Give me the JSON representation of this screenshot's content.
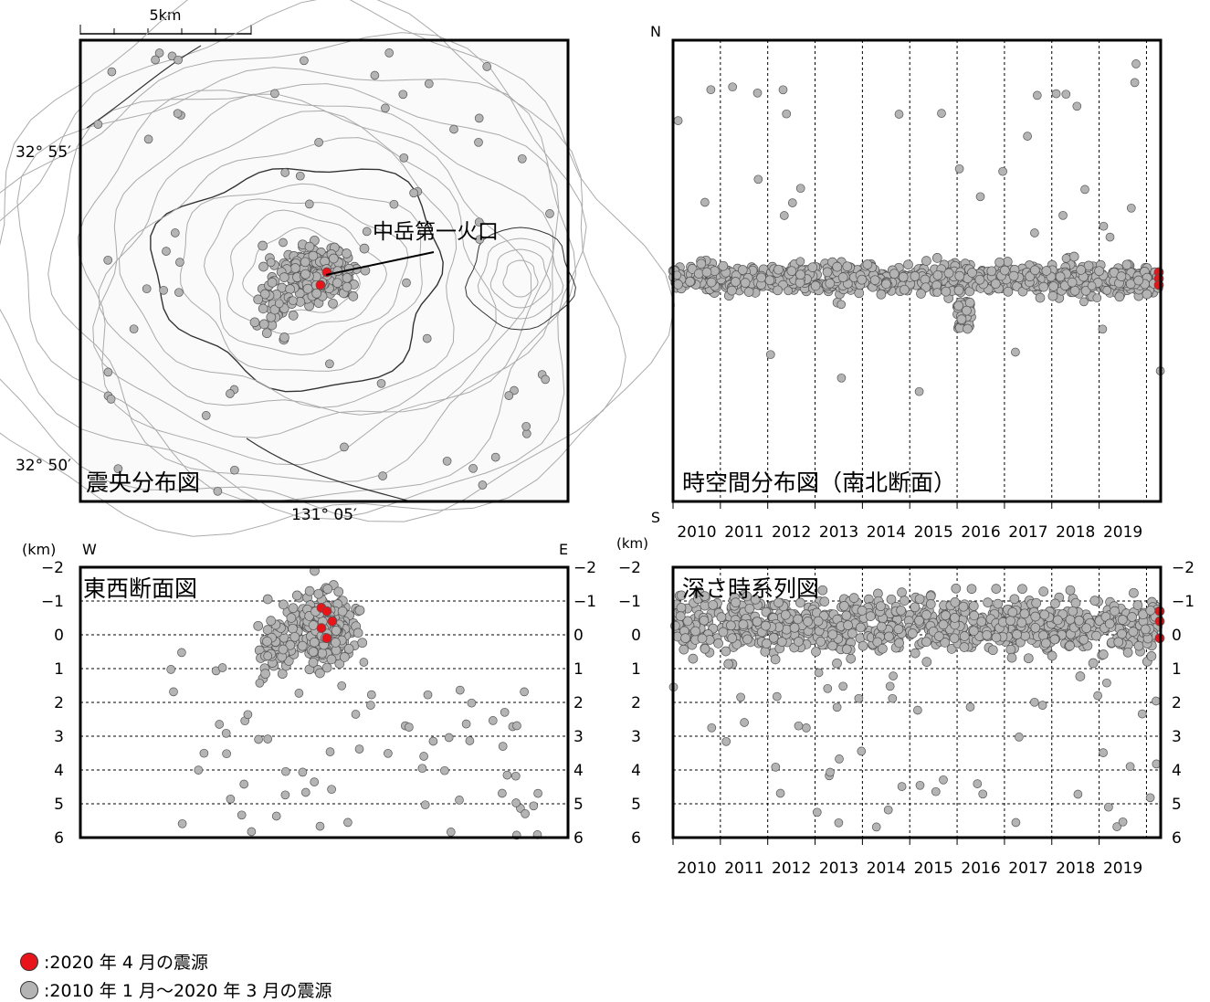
{
  "scale_bar": {
    "label": "5km"
  },
  "map": {
    "title": "震央分布図",
    "crater_label": "中岳第一火口",
    "lat_labels": [
      "32° 55′",
      "32° 50′"
    ],
    "lon_label": "131° 05′"
  },
  "ns_panel": {
    "title": "時空間分布図（南北断面）",
    "top_label": "N",
    "bottom_label": "S"
  },
  "ew_panel": {
    "title": "東西断面図",
    "unit": "(km)",
    "west": "W",
    "east": "E"
  },
  "depth_panel": {
    "title": "深さ時系列図",
    "unit": "(km)"
  },
  "legend": {
    "recent": ":2020 年 4 月の震源",
    "past": ":2010 年 1 月～2020 年 3 月の震源",
    "recent_color": "#e8141a",
    "past_color": "#b4b4b4"
  },
  "chart_data": [
    {
      "type": "scatter",
      "title": "震央分布図",
      "note": "epicenter map; dense cluster around Nakadake first crater",
      "xlabel": "",
      "ylabel": "",
      "x_ticks": [
        "131° 05′"
      ],
      "y_ticks": [
        "32° 55′",
        "32° 50′"
      ],
      "series": [
        {
          "name": "2010.1-2020.3",
          "color": "#b4b4b4",
          "cluster_center": [
            131.09,
            32.885
          ],
          "approx_count": 400
        },
        {
          "name": "2020.4",
          "color": "#e8141a",
          "points": [
            [
              131.091,
              32.886
            ],
            [
              131.089,
              32.883
            ]
          ]
        }
      ]
    },
    {
      "type": "scatter",
      "title": "時空間分布図（南北断面）",
      "xlabel": "",
      "ylabel": "",
      "x_tick_labels": [
        "2010",
        "2011",
        "2012",
        "2013",
        "2014",
        "2015",
        "2016",
        "2017",
        "2018",
        "2019"
      ],
      "xlim": [
        2010,
        2020.3
      ],
      "y_ends": [
        "S",
        "N"
      ],
      "grid": "vertical dashed at each year",
      "series": [
        {
          "name": "2010.1-2020.3",
          "color": "#b4b4b4",
          "main_band": "dense band at NS ≈ 0.5 of panel height throughout"
        },
        {
          "name": "2020.4",
          "color": "#e8141a",
          "points": [
            [
              2020.28,
              0.49
            ],
            [
              2020.28,
              0.47
            ],
            [
              2020.28,
              0.46
            ]
          ]
        }
      ]
    },
    {
      "type": "scatter",
      "title": "東西断面図",
      "ylabel": "(km)",
      "y_ticks": [
        -2,
        -1,
        0,
        1,
        2,
        3,
        4,
        5,
        6
      ],
      "ylim": [
        -2,
        6
      ],
      "x_ends": [
        "W",
        "E"
      ],
      "grid": "horizontal dashed at each km",
      "series": [
        {
          "name": "2010.1-2020.3",
          "color": "#b4b4b4",
          "cluster": "depth -1.0 to 1.0 km at crater"
        },
        {
          "name": "2020.4",
          "color": "#e8141a",
          "depths": [
            -0.8,
            -0.7,
            -0.4,
            -0.2,
            0.1
          ]
        }
      ]
    },
    {
      "type": "scatter",
      "title": "深さ時系列図",
      "ylabel": "(km)",
      "y_ticks": [
        -2,
        -1,
        0,
        1,
        2,
        3,
        4,
        5,
        6
      ],
      "ylim": [
        -2,
        6
      ],
      "x_tick_labels": [
        "2010",
        "2011",
        "2012",
        "2013",
        "2014",
        "2015",
        "2016",
        "2017",
        "2018",
        "2019"
      ],
      "xlim": [
        2010,
        2020.3
      ],
      "grid": "both dashed",
      "series": [
        {
          "name": "2010.1-2020.3",
          "color": "#b4b4b4",
          "main_band": "depth -1.5 to 1.0 km"
        },
        {
          "name": "2020.4",
          "color": "#e8141a",
          "points": [
            [
              2020.28,
              -0.7
            ],
            [
              2020.28,
              -0.4
            ],
            [
              2020.28,
              0.1
            ]
          ]
        }
      ]
    }
  ]
}
